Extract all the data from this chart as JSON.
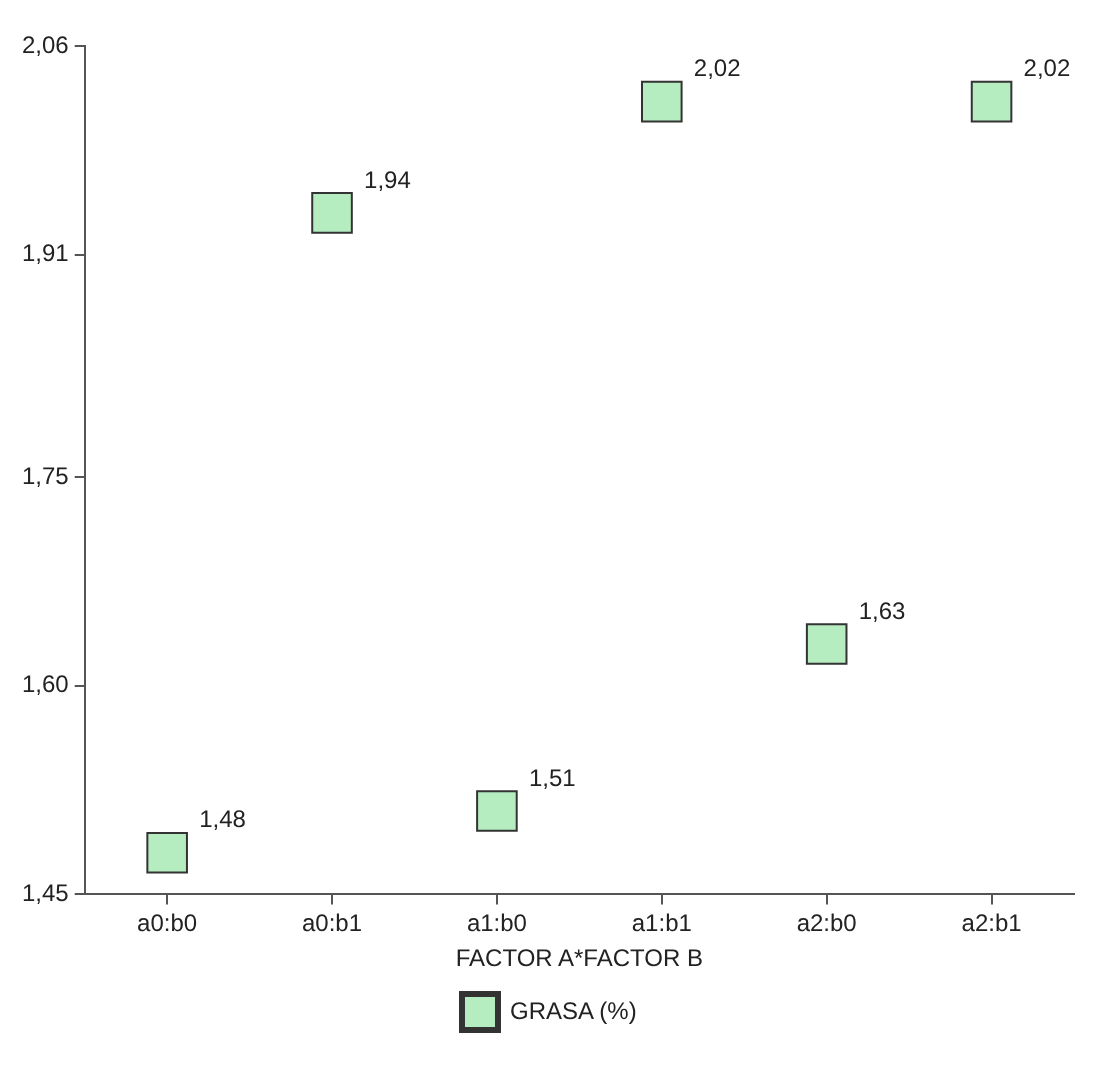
{
  "chart_data": {
    "type": "scatter",
    "xlabel": "FACTOR A*FACTOR B",
    "categories": [
      "a0:b0",
      "a0:b1",
      "a1:b0",
      "a1:b1",
      "a2:b0",
      "a2:b1"
    ],
    "series": [
      {
        "name": "GRASA (%)",
        "color": "#b5ecc0",
        "values": [
          1.48,
          1.94,
          1.51,
          2.02,
          1.63,
          2.02
        ],
        "value_labels": [
          "1,48",
          "1,94",
          "1,51",
          "2,02",
          "1,63",
          "2,02"
        ]
      }
    ],
    "ylim": [
      1.45,
      2.06
    ],
    "yticks": [
      {
        "value": 1.45,
        "label": "1,45"
      },
      {
        "value": 1.6,
        "label": "1,60"
      },
      {
        "value": 1.75,
        "label": "1,75"
      },
      {
        "value": 1.91,
        "label": "1,91"
      },
      {
        "value": 2.06,
        "label": "2,06"
      }
    ],
    "marker": "square",
    "legend": "bottom"
  }
}
